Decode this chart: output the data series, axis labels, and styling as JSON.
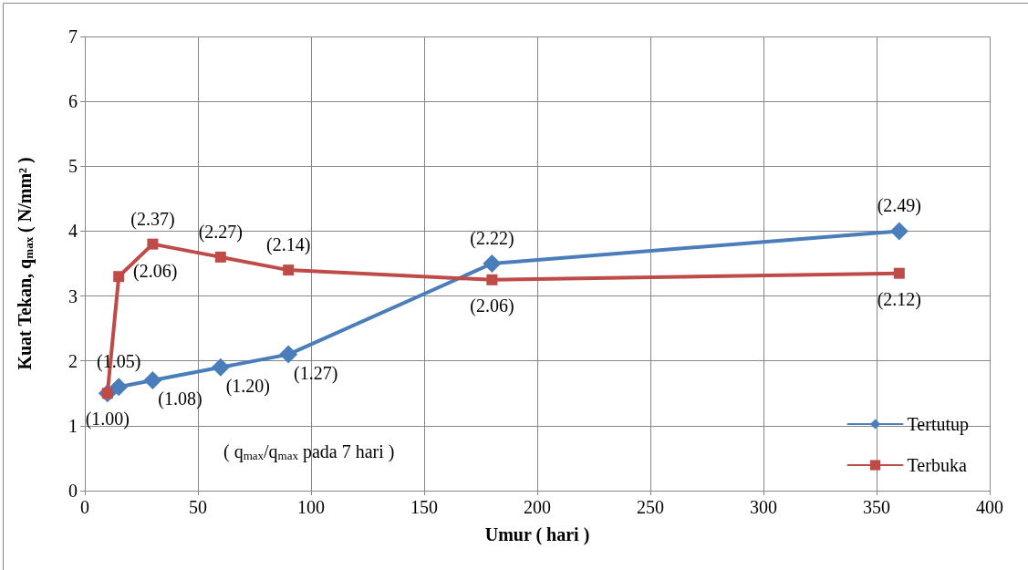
{
  "chart_data": {
    "type": "line",
    "xlabel": "Umur ( hari )",
    "ylabel": "Kuat Tekan, q$_{max}$ ( N/mm² )",
    "xlim": [
      0,
      400
    ],
    "xticks": [
      0,
      50,
      100,
      150,
      200,
      250,
      300,
      350,
      400
    ],
    "ylim": [
      0,
      7
    ],
    "yticks": [
      0,
      1,
      2,
      3,
      4,
      5,
      6,
      7
    ],
    "grid": true,
    "legend": "bottom right",
    "line_style": "solid",
    "annotations": [
      "( q$_{max}$/q$_{max}$ pada 7 hari )",
      {
        "text": "(1.00)",
        "x": 10,
        "y": 1.5
      },
      {
        "text": "(1.05)",
        "x": 15,
        "y": 1.6
      },
      {
        "text": "(1.08)",
        "x": 30,
        "y": 1.7
      },
      {
        "text": "(1.20)",
        "x": 60,
        "y": 1.9
      },
      {
        "text": "(1.27)",
        "x": 90,
        "y": 2.1
      },
      {
        "text": "(2.22)",
        "x": 180,
        "y": 3.5
      },
      {
        "text": "(2.49)",
        "x": 360,
        "y": 4.0
      },
      {
        "text": "(2.06)",
        "x": 15,
        "y": 3.3
      },
      {
        "text": "(2.37)",
        "x": 30,
        "y": 3.8
      },
      {
        "text": "(2.27)",
        "x": 60,
        "y": 3.6
      },
      {
        "text": "(2.14)",
        "x": 90,
        "y": 3.4
      },
      {
        "text": "(2.06)",
        "x": 180,
        "y": 3.25
      },
      {
        "text": "(2.12)",
        "x": 360,
        "y": 3.35
      }
    ],
    "series": [
      {
        "name": "Tertutup",
        "color": "#4a7ebb",
        "marker": "diamond",
        "x": [
          10,
          15,
          30,
          60,
          90,
          180,
          360
        ],
        "values": [
          1.5,
          1.6,
          1.7,
          1.9,
          2.1,
          3.5,
          4.0
        ]
      },
      {
        "name": "Terbuka",
        "color": "#be4b48",
        "marker": "square",
        "x": [
          10,
          15,
          30,
          60,
          90,
          180,
          360
        ],
        "values": [
          1.5,
          3.3,
          3.8,
          3.6,
          3.4,
          3.25,
          3.35
        ]
      }
    ]
  }
}
